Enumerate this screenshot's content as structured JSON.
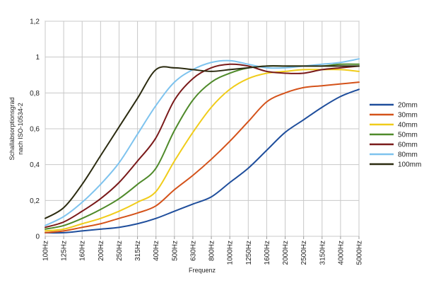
{
  "chart_data": {
    "type": "line",
    "xlabel": "Frequenz",
    "ylabel_line1": "Schallabsorptionsgrad",
    "ylabel_line2": "nach ISO-10534-2",
    "categories": [
      "100Hz",
      "125Hz",
      "160Hz",
      "200Hz",
      "250Hz",
      "315Hz",
      "400Hz",
      "500Hz",
      "630Hz",
      "800Hz",
      "1000Hz",
      "1250Hz",
      "1600Hz",
      "2000Hz",
      "2500Hz",
      "3150Hz",
      "4000Hz",
      "5000Hz"
    ],
    "y_tick_labels": [
      "0",
      "0,2",
      "0,4",
      "0,6",
      "0,8",
      "1",
      "1,2"
    ],
    "ylim": [
      0,
      1.2
    ],
    "grid": true,
    "legend_position": "right",
    "series": [
      {
        "name": "20mm",
        "color": "#1f4e9c",
        "values": [
          0.02,
          0.02,
          0.03,
          0.04,
          0.05,
          0.07,
          0.1,
          0.14,
          0.18,
          0.22,
          0.3,
          0.38,
          0.48,
          0.58,
          0.65,
          0.72,
          0.78,
          0.82
        ]
      },
      {
        "name": "30mm",
        "color": "#d4521a",
        "values": [
          0.02,
          0.03,
          0.05,
          0.07,
          0.1,
          0.13,
          0.17,
          0.26,
          0.34,
          0.43,
          0.53,
          0.64,
          0.75,
          0.8,
          0.83,
          0.84,
          0.85,
          0.86
        ]
      },
      {
        "name": "40mm",
        "color": "#f0cc1a",
        "values": [
          0.03,
          0.04,
          0.07,
          0.1,
          0.14,
          0.19,
          0.25,
          0.42,
          0.58,
          0.72,
          0.82,
          0.88,
          0.91,
          0.92,
          0.93,
          0.93,
          0.93,
          0.92
        ]
      },
      {
        "name": "50mm",
        "color": "#4f8a2a",
        "values": [
          0.04,
          0.06,
          0.1,
          0.15,
          0.21,
          0.29,
          0.38,
          0.59,
          0.76,
          0.86,
          0.91,
          0.94,
          0.95,
          0.95,
          0.95,
          0.95,
          0.96,
          0.96
        ]
      },
      {
        "name": "60mm",
        "color": "#7a1a1a",
        "values": [
          0.05,
          0.08,
          0.14,
          0.21,
          0.3,
          0.42,
          0.55,
          0.76,
          0.88,
          0.94,
          0.96,
          0.95,
          0.92,
          0.91,
          0.91,
          0.93,
          0.94,
          0.95
        ]
      },
      {
        "name": "80mm",
        "color": "#7ec3ee",
        "values": [
          0.06,
          0.11,
          0.19,
          0.29,
          0.41,
          0.57,
          0.73,
          0.86,
          0.93,
          0.97,
          0.98,
          0.96,
          0.94,
          0.94,
          0.95,
          0.96,
          0.97,
          0.99
        ]
      },
      {
        "name": "100mm",
        "color": "#2b2b10",
        "values": [
          0.1,
          0.16,
          0.29,
          0.45,
          0.61,
          0.77,
          0.93,
          0.94,
          0.93,
          0.92,
          0.93,
          0.94,
          0.95,
          0.95,
          0.95,
          0.95,
          0.95,
          0.95
        ]
      }
    ]
  }
}
